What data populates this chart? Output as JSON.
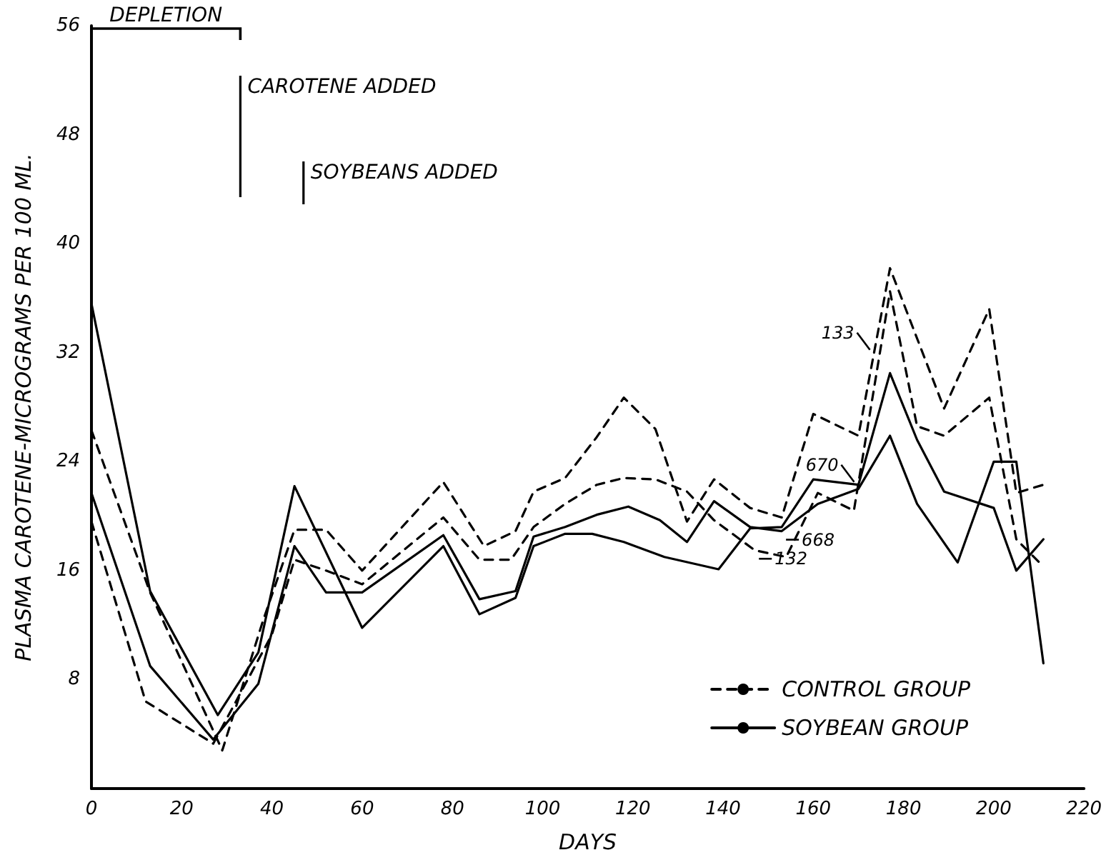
{
  "chart_data": {
    "type": "line",
    "xlabel": "DAYS",
    "ylabel": "PLASMA CAROTENE-MICROGRAMS PER 100 ML.",
    "xlim": [
      0,
      220
    ],
    "xticks": [
      0,
      20,
      40,
      60,
      80,
      100,
      120,
      140,
      160,
      180,
      200,
      220
    ],
    "ylim": [
      0,
      56
    ],
    "yticks": [
      8,
      16,
      24,
      32,
      40,
      48,
      56
    ],
    "grid": false,
    "legend": "bottom right",
    "marker": "none",
    "series": [
      {
        "name": "CONTROL GROUP",
        "color": "#000000",
        "line_style": "dashed",
        "x": [
          0,
          13,
          29,
          38,
          45,
          52,
          60,
          78,
          87,
          94,
          98,
          105,
          112,
          118,
          125,
          132,
          138,
          146,
          153,
          160,
          170,
          177,
          189,
          199,
          205,
          211
        ],
        "values": [
          26.3,
          14.4,
          2.8,
          12.3,
          19,
          19,
          16,
          22.5,
          17.8,
          18.9,
          21.8,
          22.8,
          25.8,
          28.7,
          26.4,
          19.6,
          22.7,
          20.6,
          19.9,
          27.5,
          25.9,
          38.2,
          27.9,
          35.2,
          21.7,
          22.3
        ]
      },
      {
        "color": "#000000",
        "line_style": "dashed",
        "x": [
          0,
          12,
          27,
          40,
          45,
          52,
          60,
          78,
          86,
          93,
          98,
          105,
          112,
          118,
          125,
          132,
          138,
          147,
          154,
          161,
          169,
          177,
          183,
          189,
          199,
          205,
          211
        ],
        "values": [
          19.6,
          6.4,
          3.3,
          11.3,
          16.8,
          16,
          15,
          19.9,
          16.8,
          16.8,
          19.2,
          20.9,
          22.3,
          22.8,
          22.7,
          21.8,
          19.7,
          17.5,
          17,
          21.7,
          20.4,
          36.5,
          26.6,
          25.9,
          28.7,
          18.3,
          16.3
        ]
      },
      {
        "name": "SOYBEAN GROUP",
        "color": "#000000",
        "line_style": "solid",
        "x": [
          0,
          13,
          28,
          37,
          45,
          60,
          78,
          86,
          94,
          98,
          105,
          111,
          118,
          127,
          139,
          146,
          153,
          160,
          170,
          177,
          183,
          189,
          200,
          205,
          211
        ],
        "values": [
          35.6,
          14.5,
          5.4,
          10,
          22.2,
          11.8,
          17.8,
          12.8,
          14,
          17.8,
          18.7,
          18.7,
          18.1,
          17,
          16.1,
          19.1,
          19.2,
          22.7,
          22.3,
          30.5,
          25.6,
          21.8,
          20.6,
          16,
          18.3
        ]
      },
      {
        "color": "#000000",
        "line_style": "solid",
        "x": [
          0,
          13,
          27,
          37,
          45,
          52,
          60,
          78,
          86,
          94,
          98,
          105,
          112,
          119,
          126,
          132,
          138,
          146,
          153,
          161,
          170,
          177,
          183,
          192,
          200,
          205,
          211
        ],
        "values": [
          21.7,
          9,
          3.6,
          7.7,
          17.8,
          14.4,
          14.4,
          18.6,
          13.9,
          14.5,
          18.5,
          19.2,
          20.1,
          20.7,
          19.7,
          18.1,
          21.1,
          19.2,
          18.9,
          20.9,
          22,
          25.9,
          20.9,
          16.6,
          24,
          24,
          9.2
        ]
      }
    ],
    "ref_lines": [
      {
        "axis": "x",
        "value": 33,
        "label": "CAROTENE ADDED"
      },
      {
        "axis": "x",
        "value": 47,
        "label": "SOYBEANS ADDED"
      }
    ],
    "annotations": [
      "DEPLETION",
      {
        "text": "133",
        "x": 173.5,
        "y": 32
      },
      {
        "text": "670",
        "x": 170,
        "y": 22.3
      },
      {
        "text": "132",
        "x": 147,
        "y": 17.5
      },
      {
        "text": "668",
        "x": 153,
        "y": 18.9
      }
    ]
  }
}
